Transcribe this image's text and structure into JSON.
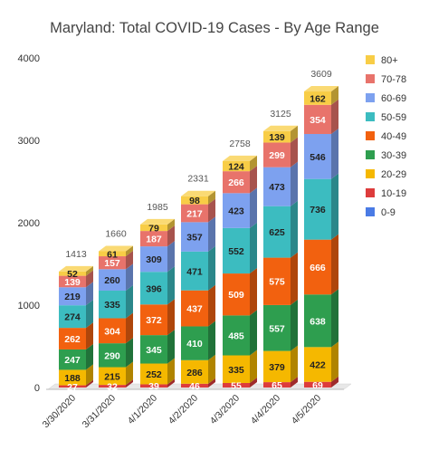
{
  "chart_data": {
    "type": "bar",
    "stacked": true,
    "style": "3d",
    "title": "Maryland: Total COVID-19 Cases - By Age Range",
    "xlabel": "",
    "ylabel": "",
    "ylim": [
      0,
      4000
    ],
    "yticks": [
      "0",
      "1000",
      "2000",
      "3000",
      "4000"
    ],
    "grid": false,
    "legend_position": "right",
    "categories": [
      "3/30/2020",
      "3/31/2020",
      "4/1/2020",
      "4/2/2020",
      "4/3/2020",
      "4/4/2020",
      "4/5/2020"
    ],
    "totals": [
      1413,
      1660,
      1985,
      2331,
      2758,
      3125,
      3609
    ],
    "series": [
      {
        "name": "0-9",
        "color": "#4a7be5",
        "values": [
          null,
          null,
          null,
          null,
          null,
          null,
          null
        ]
      },
      {
        "name": "10-19",
        "color": "#dd3c3c",
        "values": [
          27,
          32,
          39,
          46,
          55,
          65,
          69
        ]
      },
      {
        "name": "20-29",
        "color": "#f5b800",
        "values": [
          188,
          215,
          252,
          286,
          335,
          379,
          422
        ]
      },
      {
        "name": "30-39",
        "color": "#2e9e4f",
        "values": [
          247,
          290,
          345,
          410,
          485,
          557,
          638
        ]
      },
      {
        "name": "40-49",
        "color": "#f2610f",
        "values": [
          262,
          304,
          372,
          437,
          509,
          575,
          666
        ]
      },
      {
        "name": "50-59",
        "color": "#3cbcc0",
        "values": [
          274,
          335,
          396,
          471,
          552,
          625,
          736
        ]
      },
      {
        "name": "60-69",
        "color": "#7da1ef",
        "values": [
          219,
          260,
          309,
          357,
          423,
          473,
          546
        ]
      },
      {
        "name": "70-78",
        "color": "#e8736b",
        "values": [
          139,
          157,
          187,
          217,
          266,
          299,
          354
        ]
      },
      {
        "name": "80+",
        "color": "#f8cd46",
        "values": [
          52,
          61,
          79,
          98,
          124,
          139,
          162
        ]
      }
    ]
  }
}
